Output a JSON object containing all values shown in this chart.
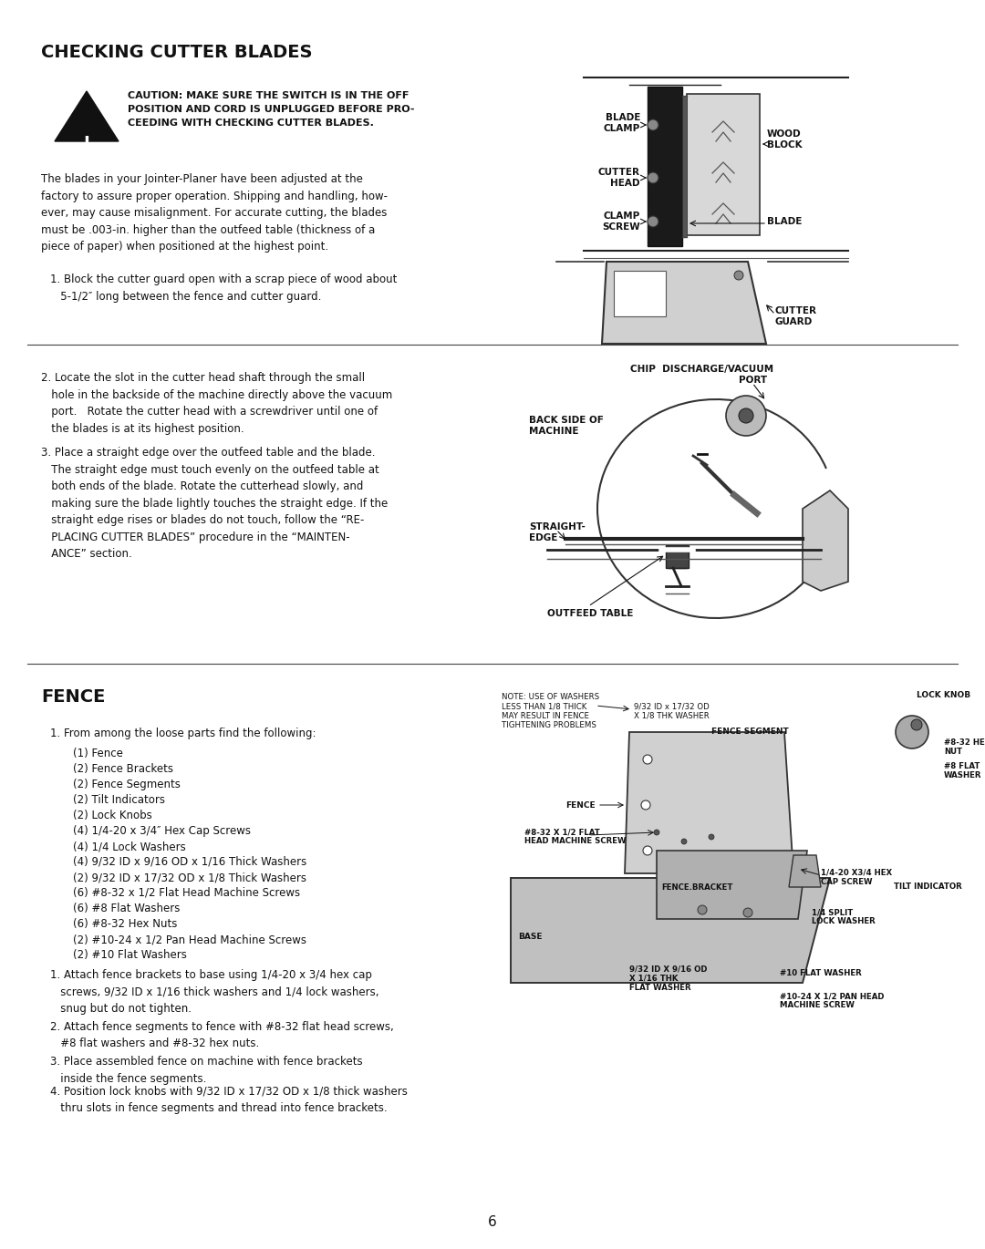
{
  "page_bg": "#ffffff",
  "title1": "CHECKING CUTTER BLADES",
  "caution_text": "CAUTION: MAKE SURE THE SWITCH IS IN THE OFF\nPOSITION AND CORD IS UNPLUGGED BEFORE PRO-\nCEEDING WITH CHECKING CUTTER BLADES.",
  "para1": "The blades in your Jointer-Planer have been adjusted at the\nfactory to assure proper operation. Shipping and handling, how-\never, may cause misalignment. For accurate cutting, the blades\nmust be .003-in. higher than the outfeed table (thickness of a\npiece of paper) when positioned at the highest point.",
  "step1": "1. Block the cutter guard open with a scrap piece of wood about\n   5-1/2″ long between the fence and cutter guard.",
  "step2": "2. Locate the slot in the cutter head shaft through the small\n   hole in the backside of the machine directly above the vacuum\n   port.   Rotate the cutter head with a screwdriver until one of\n   the blades is at its highest position.",
  "step3": "3. Place a straight edge over the outfeed table and the blade.\n   The straight edge must touch evenly on the outfeed table at\n   both ends of the blade. Rotate the cutterhead slowly, and\n   making sure the blade lightly touches the straight edge. If the\n   straight edge rises or blades do not touch, follow the “RE-\n   PLACING CUTTER BLADES” procedure in the “MAINTEN-\n   ANCE” section.",
  "title2": "FENCE",
  "fence_step1": "1. From among the loose parts find the following:",
  "fence_list": [
    "(1) Fence",
    "(2) Fence Brackets",
    "(2) Fence Segments",
    "(2) Tilt Indicators",
    "(2) Lock Knobs",
    "(4) 1/4-20 x 3/4″ Hex Cap Screws",
    "(4) 1/4 Lock Washers",
    "(4) 9/32 ID x 9/16 OD x 1/16 Thick Washers",
    "(2) 9/32 ID x 17/32 OD x 1/8 Thick Washers",
    "(6) #8-32 x 1/2 Flat Head Machine Screws",
    "(6) #8 Flat Washers",
    "(6) #8-32 Hex Nuts",
    "(2) #10-24 x 1/2 Pan Head Machine Screws",
    "(2) #10 Flat Washers"
  ],
  "fence_step1a": "1. Attach fence brackets to base using 1/4-20 x 3/4 hex cap\n   screws, 9/32 ID x 1/16 thick washers and 1/4 lock washers,\n   snug but do not tighten.",
  "fence_step2": "2. Attach fence segments to fence with #8-32 flat head screws,\n   #8 flat washers and #8-32 hex nuts.",
  "fence_step3": "3. Place assembled fence on machine with fence brackets\n   inside the fence segments.",
  "fence_step4": "4. Position lock knobs with 9/32 ID x 17/32 OD x 1/8 thick washers\n   thru slots in fence segments and thread into fence brackets.",
  "page_num": "6"
}
